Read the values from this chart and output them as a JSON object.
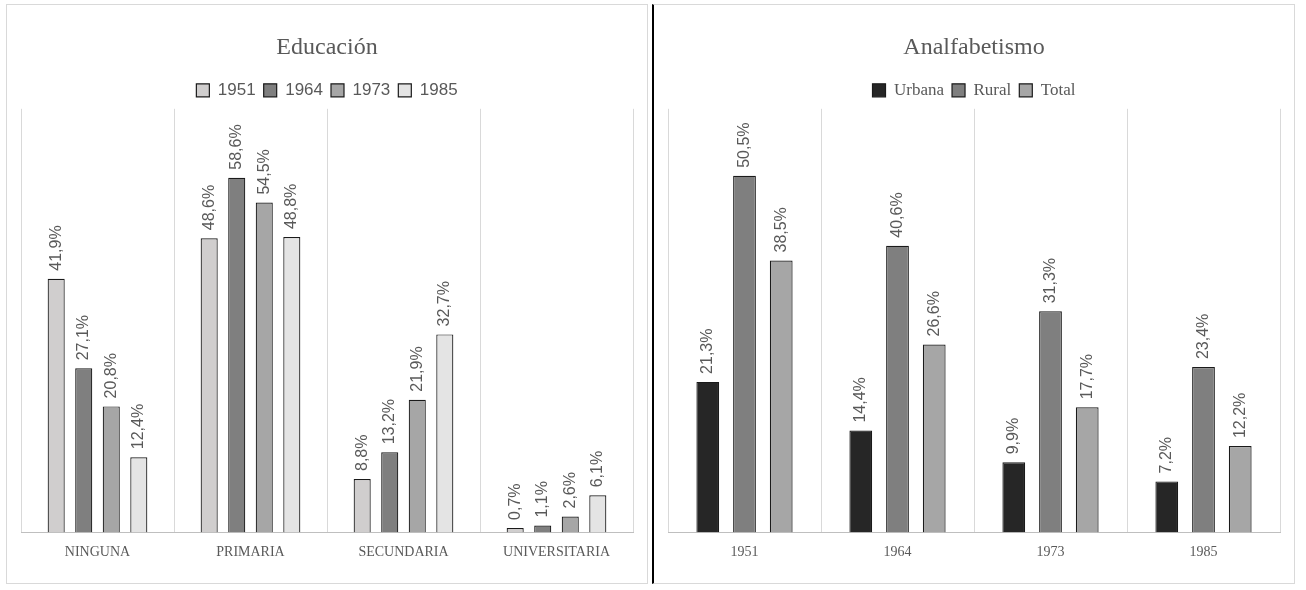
{
  "chart_data": [
    {
      "type": "bar",
      "title": "Educación",
      "categories": [
        "NINGUNA",
        "PRIMARIA",
        "SECUNDARIA",
        "UNIVERSITARIA"
      ],
      "legend": "top",
      "grid": "x",
      "series": [
        {
          "name": "1951",
          "color": "#d0cece",
          "values": [
            41.9,
            48.6,
            8.8,
            0.7
          ],
          "value_labels": [
            "41,9%",
            "48,6%",
            "8,8%",
            "0,7%"
          ]
        },
        {
          "name": "1964",
          "color": "#7f7f7f",
          "values": [
            27.1,
            58.6,
            13.2,
            1.1
          ],
          "value_labels": [
            "27,1%",
            "58,6%",
            "13,2%",
            "1,1%"
          ]
        },
        {
          "name": "1973",
          "color": "#a6a6a6",
          "values": [
            20.8,
            54.5,
            21.9,
            2.6
          ],
          "value_labels": [
            "20,8%",
            "54,5%",
            "21,9%",
            "2,6%"
          ]
        },
        {
          "name": "1985",
          "color": "#e4e4e4",
          "values": [
            12.4,
            48.8,
            32.7,
            6.1
          ],
          "value_labels": [
            "12,4%",
            "48,8%",
            "32,7%",
            "6,1%"
          ]
        }
      ]
    },
    {
      "type": "bar",
      "title": "Analfabetismo",
      "categories": [
        "1951",
        "1964",
        "1973",
        "1985"
      ],
      "legend": "top",
      "grid": "x",
      "series": [
        {
          "name": "Urbana",
          "color": "#262626",
          "values": [
            21.3,
            14.4,
            9.9,
            7.2
          ],
          "value_labels": [
            "21,3%",
            "14,4%",
            "9,9%",
            "7,2%"
          ]
        },
        {
          "name": "Rural",
          "color": "#7f7f7f",
          "values": [
            50.5,
            40.6,
            31.3,
            23.4
          ],
          "value_labels": [
            "50,5%",
            "40,6%",
            "31,3%",
            "23,4%"
          ]
        },
        {
          "name": "Total",
          "color": "#a6a6a6",
          "values": [
            38.5,
            26.6,
            17.7,
            12.2
          ],
          "value_labels": [
            "38,5%",
            "26,6%",
            "17,7%",
            "12,2%"
          ]
        }
      ]
    }
  ]
}
